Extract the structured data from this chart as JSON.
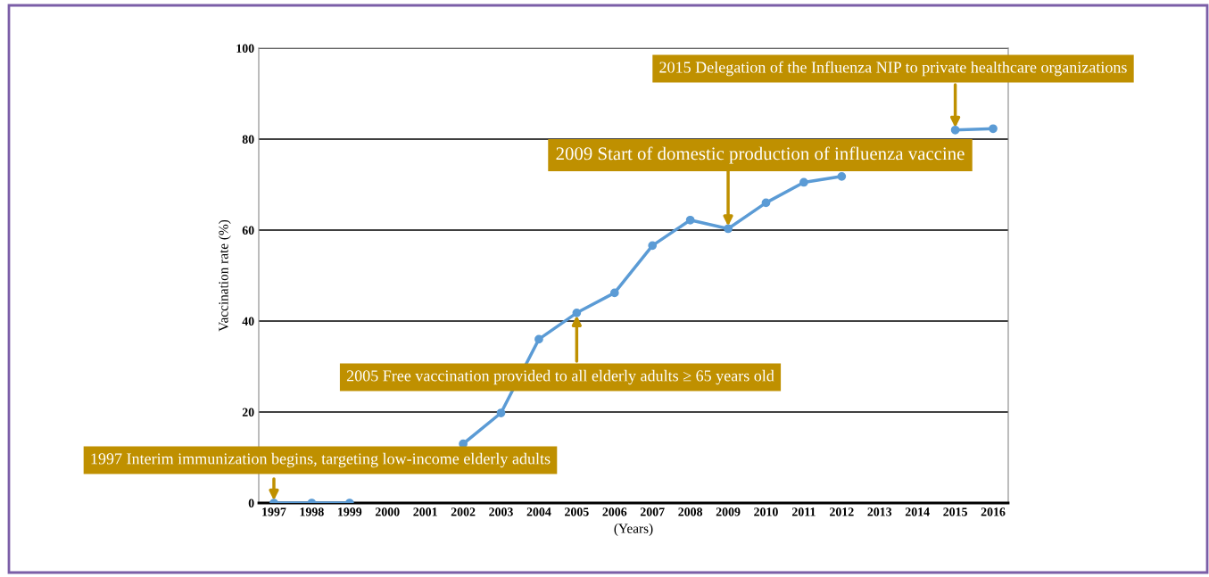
{
  "chart_data": {
    "type": "line",
    "xlabel": "(Years)",
    "ylabel": "Vaccination rate (%)",
    "categories": [
      "1997",
      "1998",
      "1999",
      "2000",
      "2001",
      "2002",
      "2003",
      "2004",
      "2005",
      "2006",
      "2007",
      "2008",
      "2009",
      "2010",
      "2011",
      "2012",
      "2013",
      "2014",
      "2015",
      "2016"
    ],
    "series": [
      {
        "color": "#5b9bd5",
        "values": [
          0,
          0,
          0,
          null,
          null,
          13,
          19.8,
          36,
          41.8,
          46.2,
          56.6,
          62.2,
          60.3,
          66,
          70.5,
          71.8,
          null,
          null,
          82,
          82.3
        ]
      }
    ],
    "ylim": [
      0,
      100
    ],
    "yticks": [
      0,
      20,
      40,
      60,
      80,
      100
    ],
    "grid": "y",
    "marker": "circle",
    "line_style": "solid",
    "annotations": [
      {
        "text": "1997 Interim immunization begins, targeting low-income elderly adults",
        "x": "1997",
        "y": 0
      },
      {
        "text": "2005 Free vaccination provided to all elderly adults ≥ 65 years old",
        "x": "2005",
        "y": 41.8
      },
      {
        "text": "2009 Start of domestic production of influenza vaccine",
        "x": "2009",
        "y": 60.3
      },
      {
        "text": "2015 Delegation of the Influenza NIP to private healthcare organizations",
        "x": "2015",
        "y": 82
      }
    ]
  }
}
